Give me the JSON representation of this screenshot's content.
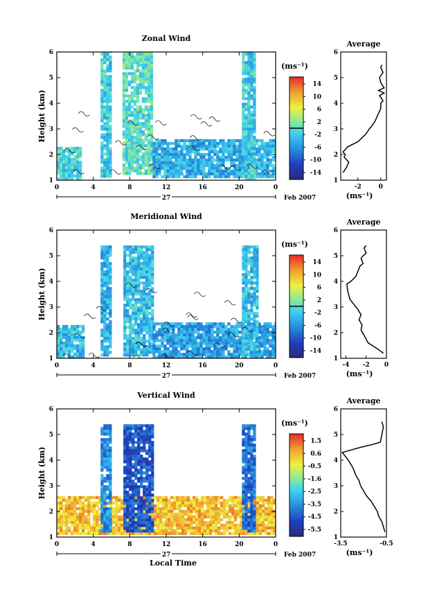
{
  "figure": {
    "x_ticks": [
      "0",
      "4",
      "8",
      "12",
      "16",
      "20",
      "0"
    ],
    "date_day": "27",
    "date_label": "Feb 2007",
    "x_label": "Local Time",
    "y_label": "Height (km)",
    "y_ticks": [
      "1",
      "2",
      "3",
      "4",
      "5",
      "6"
    ],
    "unit_label": "(ms⁻¹)",
    "profile_title": "Average",
    "profile_xlabel": "(ms⁻¹)"
  },
  "chart_data": [
    {
      "type": "heatmap",
      "title": "Zonal Wind",
      "ylabel": "Height (km)",
      "xlabel": "",
      "xlim": [
        0,
        24
      ],
      "ylim": [
        1,
        6
      ],
      "colorbar": {
        "ticks": [
          "14",
          "10",
          "6",
          "2",
          "-2",
          "-6",
          "-10",
          "-14"
        ],
        "range": [
          -16,
          16
        ],
        "zero_line": true
      },
      "colors": {
        "low": "#2a2a8a",
        "mid_low": "#2a9ae0",
        "zero": "#55ddf0",
        "mid_high": "#f0e040",
        "high": "#e82a2a"
      },
      "description_blocks": [
        {
          "t": [
            0,
            2.5
          ],
          "h": [
            1.1,
            2.3
          ],
          "value": -1
        },
        {
          "t": [
            4.8,
            5.8
          ],
          "h": [
            1.2,
            6.4
          ],
          "value": -2
        },
        {
          "t": [
            7.2,
            10.5
          ],
          "h": [
            1.3,
            6.4
          ],
          "value": 0
        },
        {
          "t": [
            10.5,
            24
          ],
          "h": [
            1.1,
            2.6
          ],
          "value": -4
        },
        {
          "t": [
            20.3,
            21.7
          ],
          "h": [
            1.1,
            6.4
          ],
          "value": -2
        }
      ]
    },
    {
      "type": "line",
      "title": "Average",
      "xlabel": "(ms⁻¹)",
      "xlim": [
        -3.5,
        0.5
      ],
      "ylim": [
        1,
        6
      ],
      "x_ticks": [
        "-2",
        "0"
      ],
      "series": [
        {
          "x": [
            -3.3,
            -3.0,
            -2.8,
            -3.0,
            -3.2,
            -3.1,
            -3.3,
            -2.9,
            -2.0,
            -1.3,
            -1.0,
            -0.8,
            -0.5,
            -0.2,
            0.0,
            0.0,
            0.2,
            -0.1,
            0.3,
            -0.2,
            0.3,
            0.0,
            -0.1,
            0.2,
            0.0,
            0.1
          ],
          "y": [
            1.3,
            1.5,
            1.7,
            1.8,
            1.9,
            2.0,
            2.1,
            2.3,
            2.5,
            2.8,
            3.0,
            3.1,
            3.3,
            3.6,
            3.8,
            4.0,
            4.1,
            4.3,
            4.4,
            4.5,
            4.6,
            4.8,
            5.0,
            5.2,
            5.4,
            5.5
          ]
        }
      ]
    },
    {
      "type": "heatmap",
      "title": "Meridional Wind",
      "ylabel": "Height (km)",
      "xlabel": "",
      "xlim": [
        0,
        24
      ],
      "ylim": [
        1,
        6
      ],
      "colorbar": {
        "ticks": [
          "14",
          "10",
          "6",
          "2",
          "-2",
          "-6",
          "-10",
          "-14"
        ],
        "range": [
          -16,
          16
        ],
        "zero_line": true
      },
      "colors": {
        "low": "#2a2a8a",
        "mid_low": "#2a9ae0",
        "zero": "#55ddf0",
        "mid_high": "#f0e040",
        "high": "#e82a2a"
      },
      "description_blocks": [
        {
          "t": [
            0,
            3.0
          ],
          "h": [
            1.1,
            2.3
          ],
          "value": -3
        },
        {
          "t": [
            4.8,
            5.8
          ],
          "h": [
            1.1,
            5.4
          ],
          "value": -4
        },
        {
          "t": [
            7.3,
            10.5
          ],
          "h": [
            1.1,
            5.4
          ],
          "value": -3
        },
        {
          "t": [
            10.5,
            24
          ],
          "h": [
            1.1,
            2.4
          ],
          "value": -5
        },
        {
          "t": [
            20.3,
            22.0
          ],
          "h": [
            1.1,
            5.4
          ],
          "value": -3
        }
      ]
    },
    {
      "type": "line",
      "title": "Average",
      "xlabel": "(ms⁻¹)",
      "xlim": [
        -4.5,
        0
      ],
      "ylim": [
        1,
        6
      ],
      "x_ticks": [
        "-4",
        "-2",
        "0"
      ],
      "series": [
        {
          "x": [
            -0.3,
            -1.0,
            -1.8,
            -2.2,
            -2.5,
            -2.4,
            -2.7,
            -2.5,
            -2.8,
            -3.2,
            -3.6,
            -3.8,
            -3.9,
            -3.5,
            -3.0,
            -2.8,
            -2.6,
            -2.3,
            -2.5,
            -2.3,
            -2.0,
            -2.2,
            -2.0
          ],
          "y": [
            1.2,
            1.4,
            1.6,
            1.9,
            2.1,
            2.3,
            2.5,
            2.7,
            2.9,
            3.1,
            3.3,
            3.6,
            3.9,
            4.0,
            4.2,
            4.4,
            4.6,
            4.7,
            4.9,
            5.0,
            5.1,
            5.3,
            5.4
          ]
        }
      ]
    },
    {
      "type": "heatmap",
      "title": "Vertical Wind",
      "ylabel": "Height (km)",
      "xlabel": "Local Time",
      "xlim": [
        0,
        24
      ],
      "ylim": [
        1,
        6
      ],
      "colorbar": {
        "ticks": [
          "1.5",
          "0.6",
          "-0.5",
          "-1.6",
          "-2.5",
          "-3.5",
          "-4.5",
          "-5.5"
        ],
        "range": [
          -6,
          2
        ],
        "zero_line": false
      },
      "colors": {
        "low": "#2a2a8a",
        "mid_low": "#2a9ae0",
        "zero": "#f0e040",
        "mid_high": "#f0a030",
        "high": "#e82a2a"
      },
      "description_blocks": [
        {
          "t": [
            0,
            24
          ],
          "h": [
            1.1,
            2.6
          ],
          "value": 0.3
        },
        {
          "t": [
            4.8,
            5.8
          ],
          "h": [
            1.2,
            5.4
          ],
          "value": -3.5
        },
        {
          "t": [
            7.3,
            10.5
          ],
          "h": [
            1.2,
            5.4
          ],
          "value": -4.5
        },
        {
          "t": [
            20.3,
            21.7
          ],
          "h": [
            1.2,
            5.4
          ],
          "value": -4.0
        }
      ]
    },
    {
      "type": "line",
      "title": "Average",
      "xlabel": "(ms⁻¹)",
      "xlim": [
        -3.5,
        -0.5
      ],
      "ylim": [
        1,
        6
      ],
      "x_ticks": [
        "-3.5",
        "-0.5"
      ],
      "series": [
        {
          "x": [
            -0.6,
            -0.7,
            -0.8,
            -1.0,
            -1.1,
            -1.3,
            -1.5,
            -1.8,
            -2.0,
            -2.2,
            -2.3,
            -2.5,
            -2.7,
            -3.0,
            -3.4,
            -2.8,
            -2.2,
            -1.5,
            -0.9,
            -0.8,
            -0.7,
            -0.8
          ],
          "y": [
            1.2,
            1.4,
            1.6,
            1.8,
            2.0,
            2.2,
            2.4,
            2.6,
            2.8,
            3.0,
            3.2,
            3.4,
            3.7,
            4.0,
            4.3,
            4.4,
            4.5,
            4.6,
            4.7,
            5.0,
            5.3,
            5.5
          ]
        }
      ]
    }
  ]
}
